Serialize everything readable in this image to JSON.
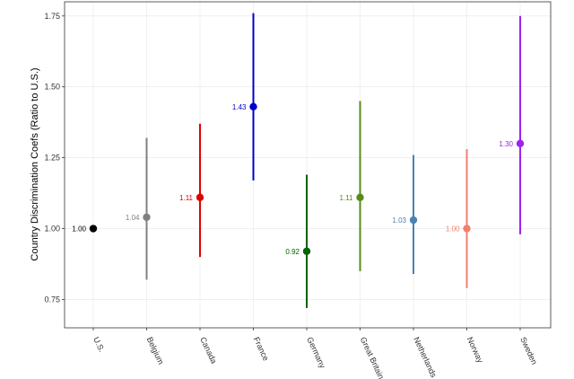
{
  "chart_data": {
    "type": "scatter",
    "subtype": "point-range",
    "title": "",
    "xlabel": "",
    "ylabel": "Country Discrimination Coefs (Ratio to U.S.)",
    "ylim": [
      0.65,
      1.8
    ],
    "yticks": [
      0.75,
      1.0,
      1.25,
      1.5,
      1.75
    ],
    "ytick_labels": [
      "0.75",
      "1.00",
      "1.25",
      "1.50",
      "1.75"
    ],
    "grid": true,
    "legend": "none",
    "categories": [
      "U.S.",
      "Belgium",
      "Canada",
      "France",
      "Germany",
      "Great Britain",
      "Netherlands",
      "Norway",
      "Sweden"
    ],
    "values": [
      1.0,
      1.04,
      1.11,
      1.43,
      0.92,
      1.11,
      1.03,
      1.0,
      1.3
    ],
    "value_labels": [
      "1.00",
      "1.04",
      "1.11",
      "1.43",
      "0.92",
      "1.11",
      "1.03",
      "1.00",
      "1.30"
    ],
    "lower": [
      1.0,
      0.82,
      0.9,
      1.17,
      0.72,
      0.85,
      0.84,
      0.79,
      0.98
    ],
    "upper": [
      1.0,
      1.32,
      1.37,
      1.76,
      1.19,
      1.45,
      1.26,
      1.28,
      1.75
    ],
    "colors": [
      "#000000",
      "#808080",
      "#e00000",
      "#0000cc",
      "#006400",
      "#5a8a1e",
      "#4a82b4",
      "#f08070",
      "#a020f0"
    ]
  }
}
